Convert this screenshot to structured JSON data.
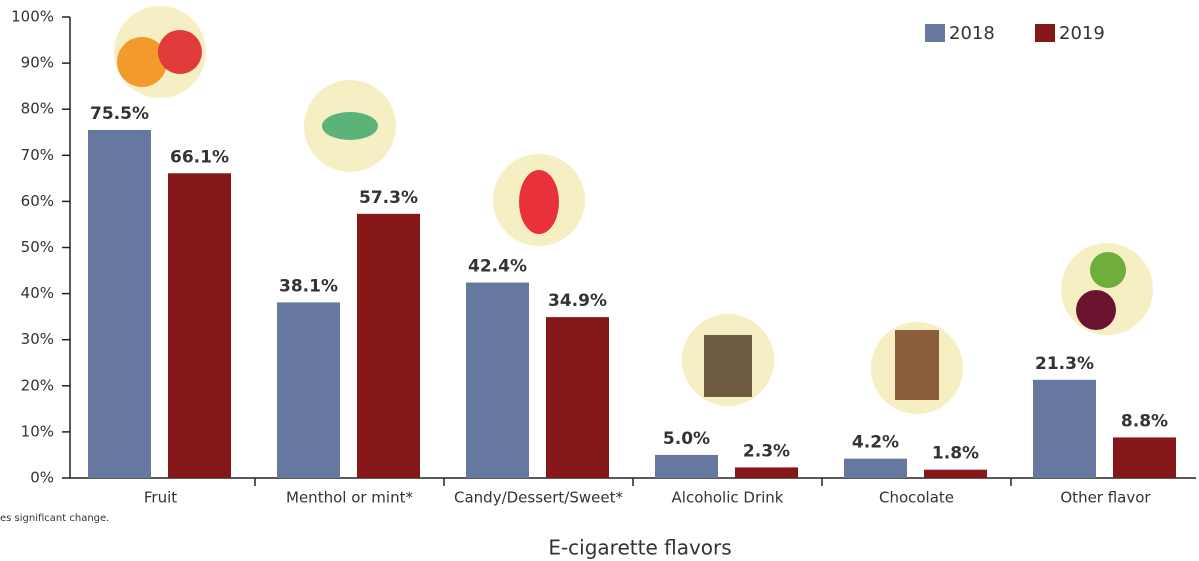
{
  "chart_data": {
    "type": "bar",
    "x_label": "E-cigarette flavors",
    "footnote": "es significant change.",
    "categories": [
      "Fruit",
      "Menthol or mint*",
      "Candy/Dessert/Sweet*",
      "Alcoholic Drink",
      "Chocolate",
      "Other flavor"
    ],
    "series": [
      {
        "name": "2018",
        "color": "#66789f",
        "values": [
          75.5,
          38.1,
          42.4,
          5.0,
          4.2,
          21.3
        ],
        "value_labels": [
          "75.5%",
          "38.1%",
          "42.4%",
          "5.0%",
          "4.2%",
          "21.3%"
        ]
      },
      {
        "name": "2019",
        "color": "#851719",
        "values": [
          66.1,
          57.3,
          34.9,
          2.3,
          1.8,
          8.8
        ],
        "value_labels": [
          "66.1%",
          "57.3%",
          "34.9%",
          "2.3%",
          "1.8%",
          "8.8%"
        ]
      }
    ],
    "ylim": [
      0,
      100
    ],
    "yticks": [
      {
        "value": 0,
        "label": "0%"
      },
      {
        "value": 10,
        "label": "10%"
      },
      {
        "value": 20,
        "label": "20%"
      },
      {
        "value": 30,
        "label": "30%"
      },
      {
        "value": 40,
        "label": "40%"
      },
      {
        "value": 50,
        "label": "50%"
      },
      {
        "value": 60,
        "label": "60%"
      },
      {
        "value": 70,
        "label": "70%"
      },
      {
        "value": 80,
        "label": "80%"
      },
      {
        "value": 90,
        "label": "90%"
      },
      {
        "value": 100,
        "label": "100%"
      }
    ],
    "legend": "top-right"
  }
}
